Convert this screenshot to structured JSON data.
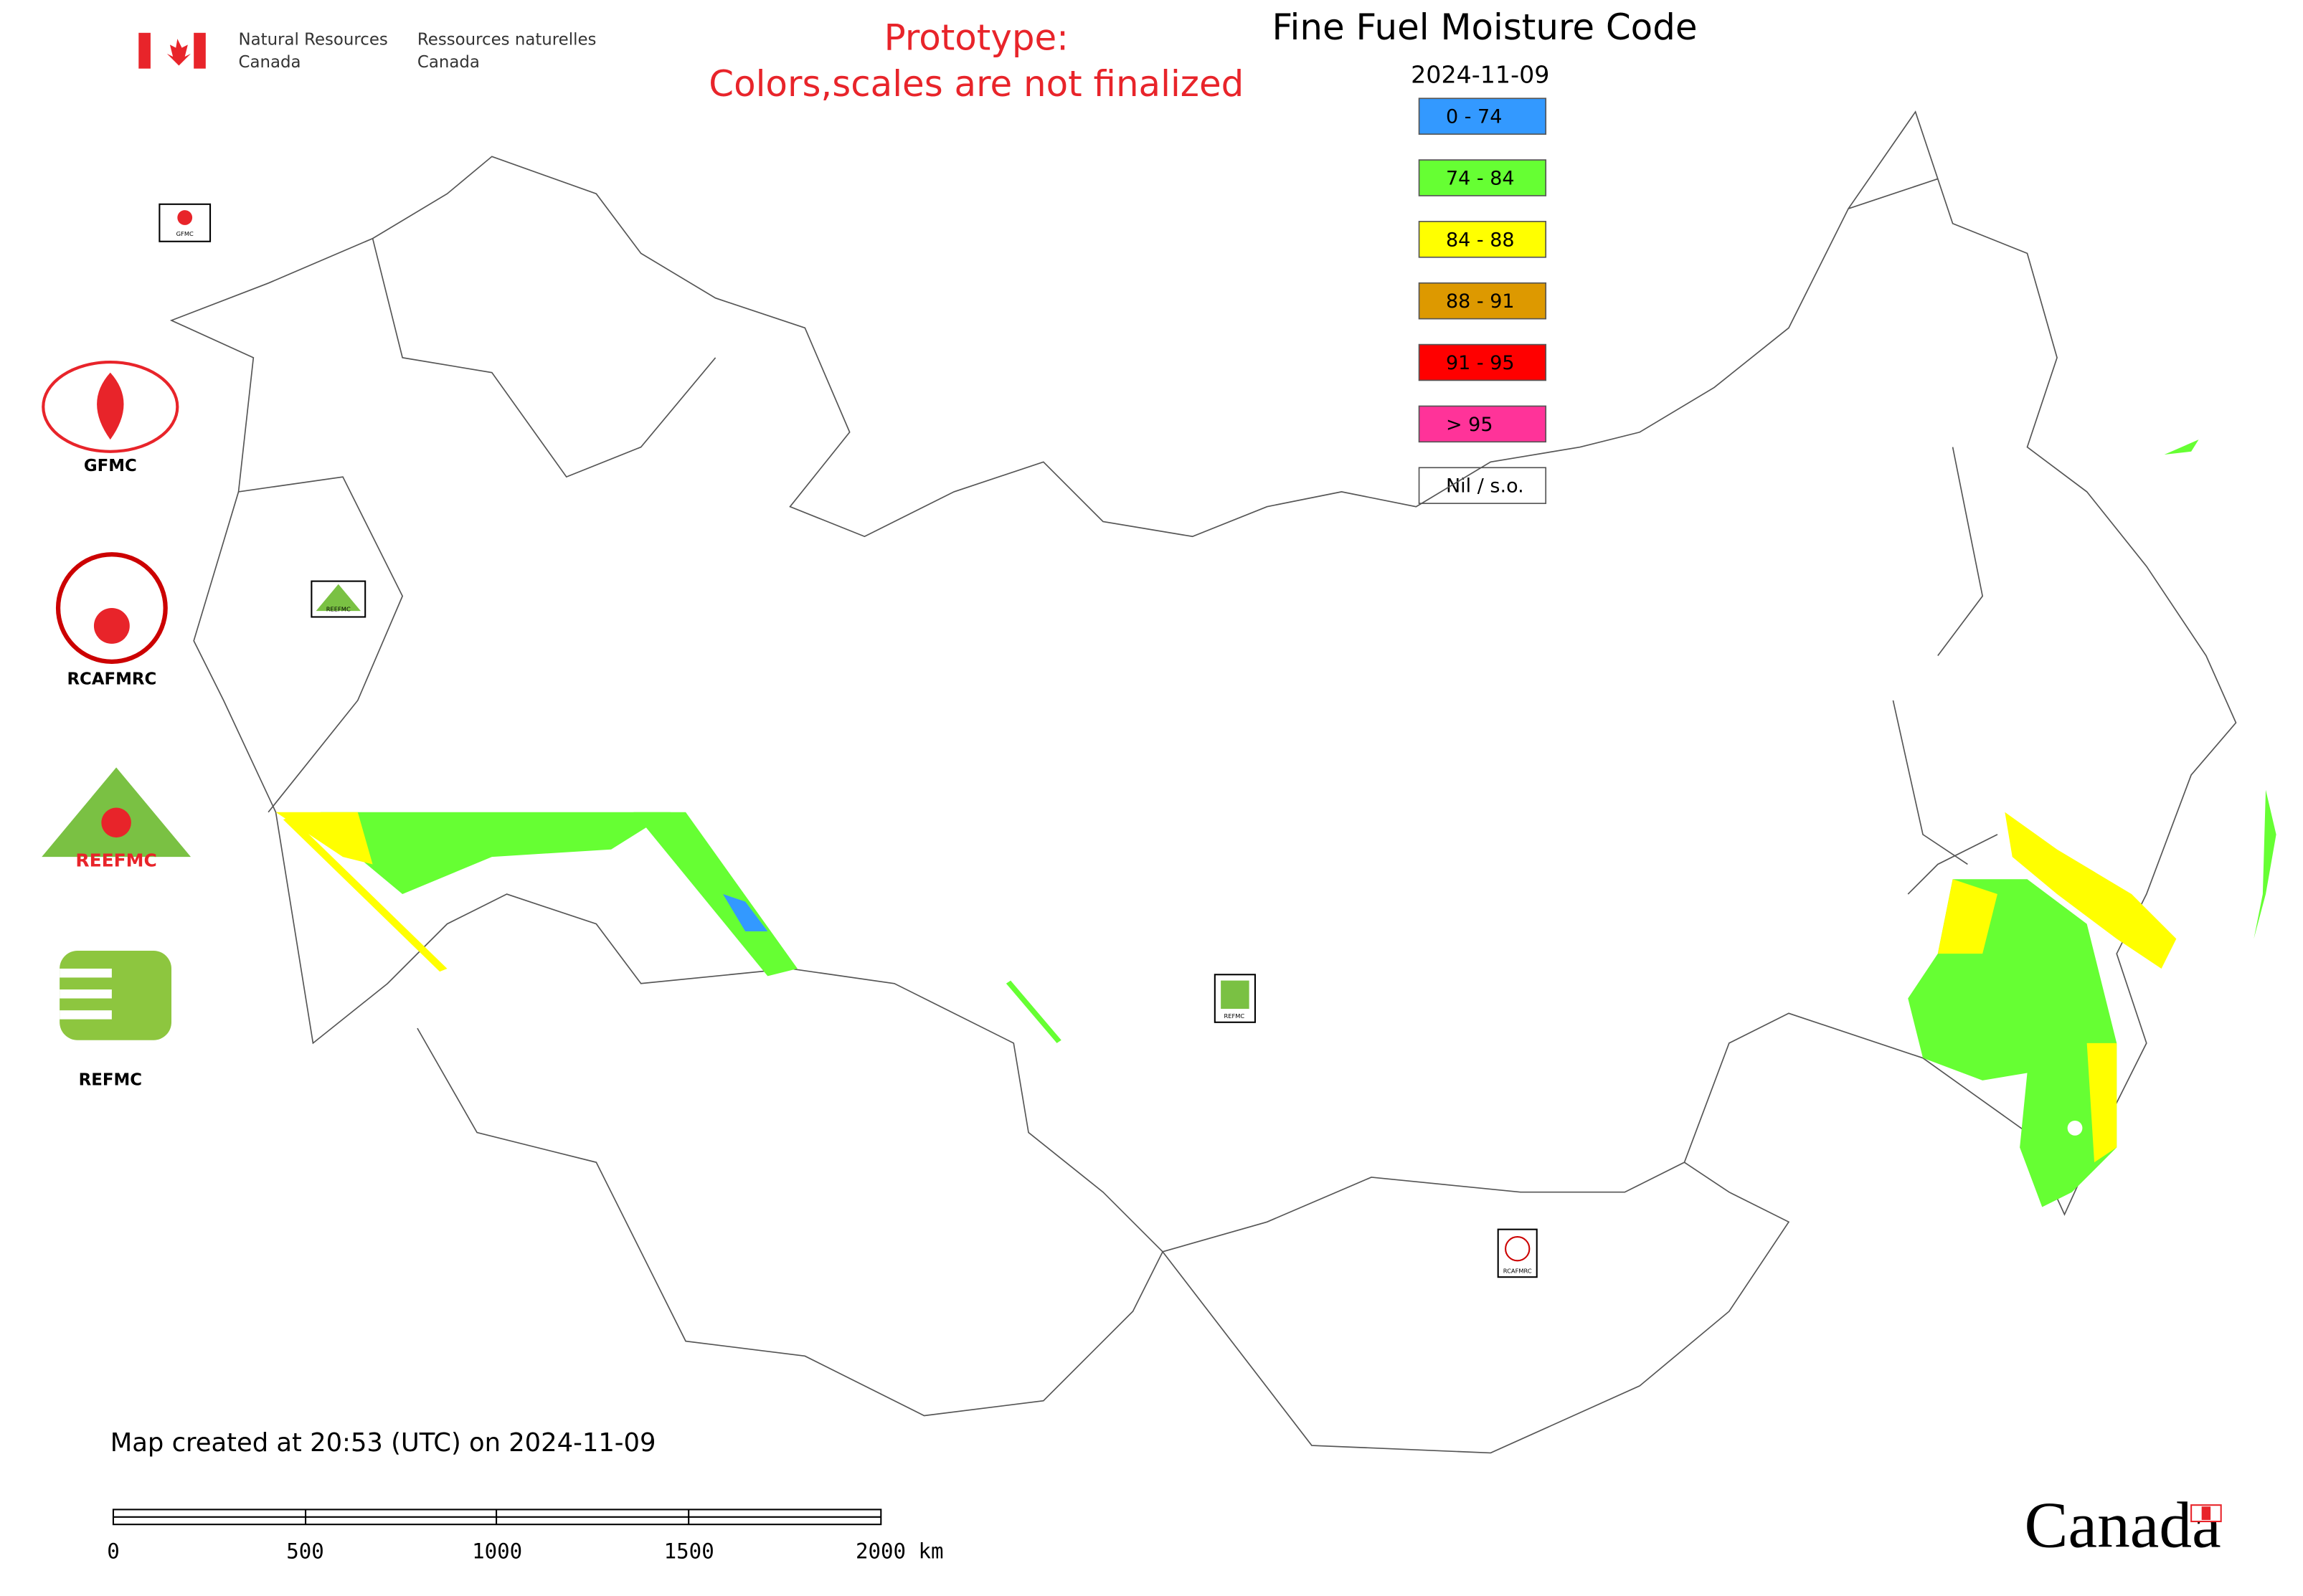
{
  "header": {
    "org_en": [
      "Natural Resources",
      "Canada"
    ],
    "org_fr": [
      "Ressources naturelles",
      "Canada"
    ]
  },
  "notice": [
    "Prototype:",
    "Colors,scales are not finalized"
  ],
  "title": "Fine Fuel Moisture Code",
  "date": "2024-11-09",
  "legend": [
    {
      "label": "0 - 74",
      "color": "#3399ff"
    },
    {
      "label": "74 - 84",
      "color": "#66ff33"
    },
    {
      "label": "84 - 88",
      "color": "#ffff00"
    },
    {
      "label": "88 - 91",
      "color": "#dd9900"
    },
    {
      "label": "91 - 95",
      "color": "#ff0000"
    },
    {
      "label": "> 95",
      "color": "#ff3399"
    },
    {
      "label": "Nil / s.o.",
      "color": "#ffffff"
    }
  ],
  "logos": [
    "GFMC",
    "RCAFMRC",
    "REEFMC",
    "REFMC"
  ],
  "map_markers": [
    "GFMC",
    "REEFMC",
    "REFMC",
    "RCAFMRC"
  ],
  "footer": {
    "created": "Map created at 20:53 (UTC) on 2024-11-09",
    "scale_labels": [
      "0",
      "500",
      "1000",
      "1500",
      "2000 km"
    ]
  },
  "wordmark": "Canada"
}
